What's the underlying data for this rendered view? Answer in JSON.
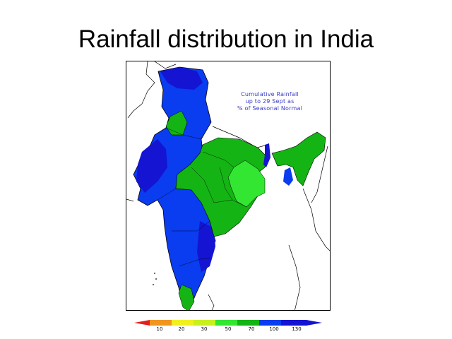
{
  "slide": {
    "title": "Rainfall distribution in India"
  },
  "map": {
    "annotation_lines": [
      "Cumulative Rainfall",
      "up to 29 Sept as",
      "% of Seasonal Normal"
    ],
    "colors": {
      "dark_blue": "#1414d2",
      "blue": "#0a3cf0",
      "green": "#14b414",
      "light_green": "#32e632",
      "border": "#000000",
      "annotation_text": "#3a3ac8"
    }
  },
  "legend": {
    "ticks": [
      "10",
      "20",
      "30",
      "50",
      "70",
      "100",
      "130"
    ],
    "colors": [
      "#e61e1e",
      "#f0961e",
      "#f0f01e",
      "#c8f01e",
      "#32e632",
      "#14b414",
      "#0a3cf0",
      "#1414d2"
    ]
  }
}
